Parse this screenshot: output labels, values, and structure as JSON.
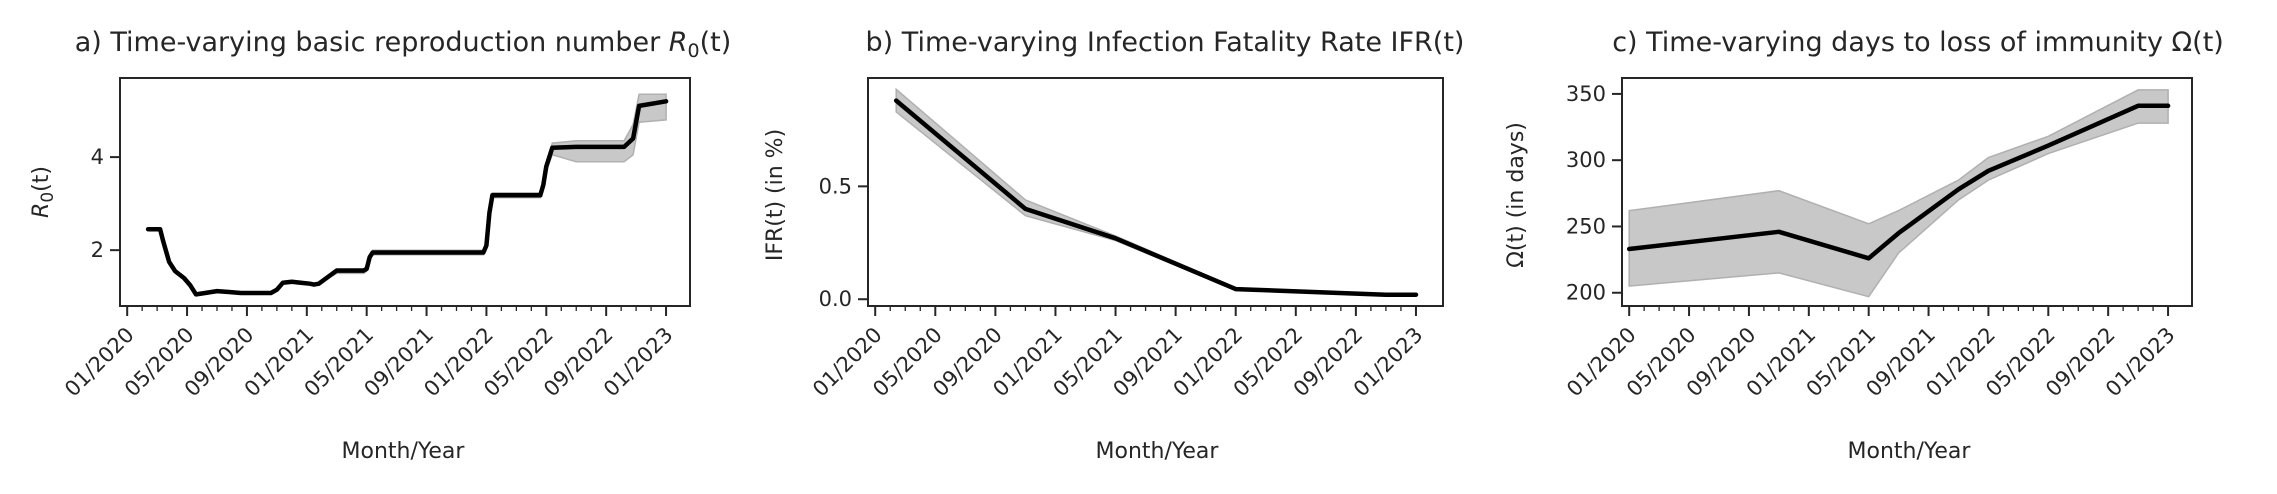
{
  "chart_data": [
    {
      "type": "line",
      "title_text": "a) Time-varying basic reproduction number ",
      "title_math": "R",
      "title_math_sub": "0",
      "title_math_tail": "(t)",
      "xlabel": "Month/Year",
      "ylabel_math": "R",
      "ylabel_math_sub": "0",
      "ylabel_math_tail": "(t)",
      "x_ticks": [
        "01/2020",
        "05/2020",
        "09/2020",
        "01/2021",
        "05/2021",
        "09/2021",
        "01/2022",
        "05/2022",
        "09/2022",
        "01/2023"
      ],
      "y_ticks": [
        2,
        4
      ],
      "xlim": [
        -0.12,
        9.4
      ],
      "ylim": [
        0.8,
        5.7
      ],
      "series": [
        {
          "x": [
            0.35,
            0.55,
            0.6,
            0.7,
            0.8,
            0.95,
            1.05,
            1.15,
            1.3,
            1.5,
            1.7,
            1.9,
            2.1,
            2.4,
            2.5,
            2.6,
            2.75,
            2.9,
            3.05,
            3.12,
            3.2,
            3.5,
            3.95,
            4.0,
            4.05,
            4.1,
            4.9,
            5.95,
            6.0,
            6.05,
            6.1,
            6.9,
            6.95,
            7.0,
            7.1,
            7.5,
            8.1,
            8.3,
            8.45,
            8.55,
            9.0
          ],
          "y": [
            2.45,
            2.45,
            2.2,
            1.75,
            1.55,
            1.4,
            1.25,
            1.05,
            1.08,
            1.12,
            1.1,
            1.08,
            1.08,
            1.08,
            1.15,
            1.3,
            1.32,
            1.3,
            1.28,
            1.26,
            1.28,
            1.56,
            1.56,
            1.6,
            1.85,
            1.95,
            1.95,
            1.95,
            2.1,
            2.8,
            3.18,
            3.18,
            3.4,
            3.8,
            4.2,
            4.22,
            4.22,
            4.22,
            4.4,
            5.1,
            5.2
          ],
          "band_low": [
            2.45,
            2.45,
            2.2,
            1.75,
            1.55,
            1.4,
            1.25,
            1.05,
            1.08,
            1.12,
            1.1,
            1.08,
            1.08,
            1.08,
            1.15,
            1.3,
            1.32,
            1.3,
            1.28,
            1.26,
            1.28,
            1.5,
            1.5,
            1.55,
            1.8,
            1.9,
            1.9,
            1.9,
            2.05,
            2.75,
            3.13,
            3.13,
            3.3,
            3.7,
            4.05,
            3.9,
            3.9,
            3.9,
            4.05,
            4.75,
            4.8
          ],
          "band_high": [
            2.45,
            2.45,
            2.2,
            1.75,
            1.55,
            1.4,
            1.25,
            1.05,
            1.08,
            1.12,
            1.1,
            1.08,
            1.08,
            1.08,
            1.15,
            1.3,
            1.32,
            1.3,
            1.28,
            1.26,
            1.28,
            1.6,
            1.6,
            1.65,
            1.9,
            2.0,
            2.0,
            2.0,
            2.15,
            2.85,
            3.23,
            3.23,
            3.45,
            3.9,
            4.3,
            4.35,
            4.35,
            4.35,
            4.7,
            5.35,
            5.35
          ]
        }
      ]
    },
    {
      "type": "line",
      "title_text": "b) Time-varying Infection Fatality Rate IFR(t)",
      "xlabel": "Month/Year",
      "ylabel": "IFR(t) (in %)",
      "x_ticks": [
        "01/2020",
        "05/2020",
        "09/2020",
        "01/2021",
        "05/2021",
        "09/2021",
        "01/2022",
        "05/2022",
        "09/2022",
        "01/2023"
      ],
      "y_tick_labels": [
        "0.0",
        "0.5"
      ],
      "y_ticks": [
        0.0,
        0.5
      ],
      "xlim": [
        -0.12,
        9.45
      ],
      "ylim": [
        -0.03,
        0.98
      ],
      "series": [
        {
          "x": [
            0.35,
            2.5,
            4.0,
            6.0,
            8.5,
            9.0
          ],
          "y": [
            0.88,
            0.4,
            0.27,
            0.045,
            0.02,
            0.02
          ],
          "band_low": [
            0.83,
            0.37,
            0.26,
            0.04,
            0.015,
            0.015
          ],
          "band_high": [
            0.93,
            0.44,
            0.28,
            0.05,
            0.025,
            0.025
          ]
        }
      ]
    },
    {
      "type": "line",
      "title_text": "c) Time-varying days to loss of immunity ",
      "title_math": "Ω",
      "title_math_tail": "(t)",
      "xlabel": "Month/Year",
      "ylabel_math": "Ω",
      "ylabel_math_tail": "(t) (in days)",
      "x_ticks": [
        "01/2020",
        "05/2020",
        "09/2020",
        "01/2021",
        "05/2021",
        "09/2021",
        "01/2022",
        "05/2022",
        "09/2022",
        "01/2023"
      ],
      "y_ticks": [
        200,
        250,
        300,
        350
      ],
      "xlim": [
        -0.12,
        9.4
      ],
      "ylim": [
        190,
        362
      ],
      "series": [
        {
          "x": [
            0.0,
            2.5,
            4.0,
            4.5,
            5.5,
            6.0,
            7.0,
            8.5,
            9.0
          ],
          "y": [
            233,
            246,
            226,
            245,
            278,
            292,
            311,
            341,
            341
          ],
          "band_low": [
            205,
            215,
            197,
            230,
            270,
            285,
            305,
            328,
            328
          ],
          "band_high": [
            262,
            277,
            252,
            262,
            285,
            302,
            318,
            353,
            353
          ]
        }
      ]
    }
  ]
}
